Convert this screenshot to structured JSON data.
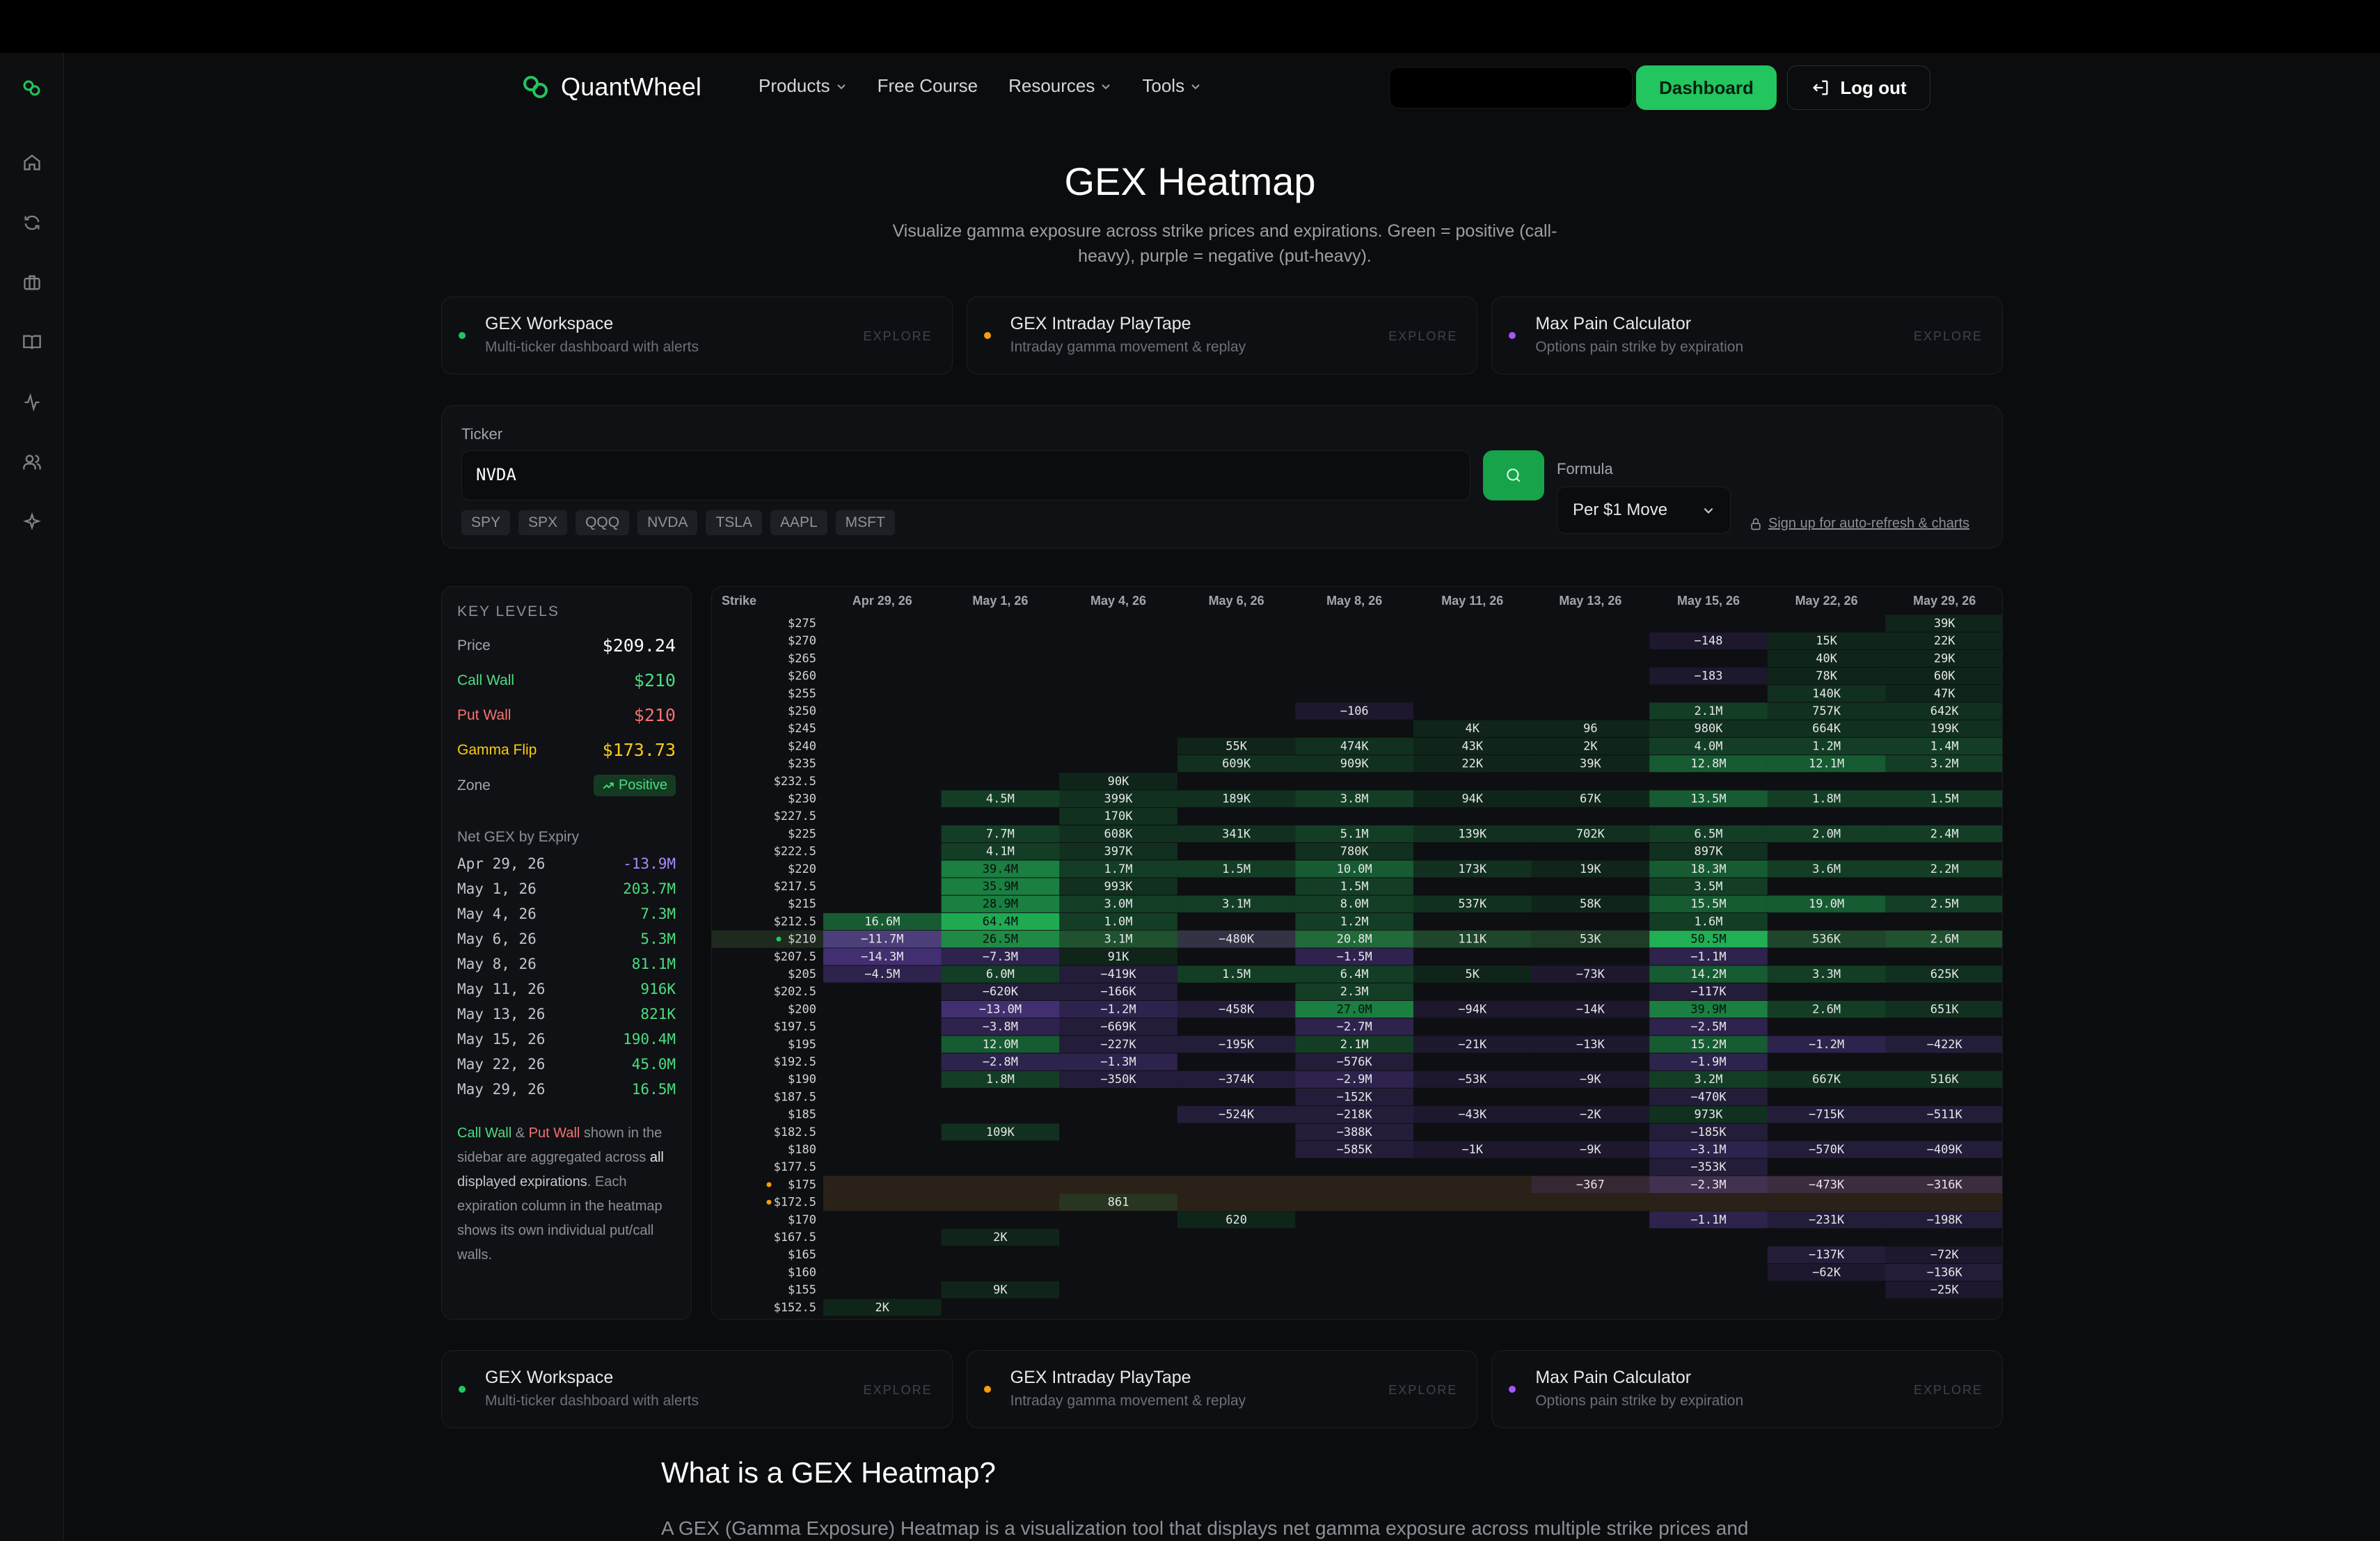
{
  "brand": {
    "name": "QuantWheel"
  },
  "nav": {
    "products": "Products",
    "free_course": "Free Course",
    "resources": "Resources",
    "tools": "Tools",
    "dashboard": "Dashboard",
    "logout": "Log out"
  },
  "sidebar_icons": [
    "logo-icon",
    "home-icon",
    "refresh-icon",
    "briefcase-icon",
    "book-icon",
    "activity-icon",
    "users-icon",
    "sparkle-icon"
  ],
  "page": {
    "title": "GEX Heatmap",
    "subtitle": "Visualize gamma exposure across strike prices and expirations. Green = positive (call-heavy), purple = negative (put-heavy)."
  },
  "tool_cards": [
    {
      "title": "GEX Workspace",
      "subtitle": "Multi-ticker dashboard with alerts",
      "cta": "EXPLORE",
      "dot": "#22c55e"
    },
    {
      "title": "GEX Intraday PlayTape",
      "subtitle": "Intraday gamma movement & replay",
      "cta": "EXPLORE",
      "dot": "#f59e0b"
    },
    {
      "title": "Max Pain Calculator",
      "subtitle": "Options pain strike by expiration",
      "cta": "EXPLORE",
      "dot": "#a855f7"
    }
  ],
  "ticker": {
    "label": "Ticker",
    "value": "NVDA",
    "chips": [
      "SPY",
      "SPX",
      "QQQ",
      "NVDA",
      "TSLA",
      "AAPL",
      "MSFT"
    ],
    "formula_label": "Formula",
    "formula_value": "Per $1 Move",
    "signup_link": "Sign up for auto-refresh & charts"
  },
  "key_levels": {
    "title": "KEY LEVELS",
    "price_label": "Price",
    "price": "$209.24",
    "call_wall_label": "Call Wall",
    "call_wall": "$210",
    "put_wall_label": "Put Wall",
    "put_wall": "$210",
    "gamma_flip_label": "Gamma Flip",
    "gamma_flip": "$173.73",
    "zone_label": "Zone",
    "zone": "Positive",
    "net_title": "Net GEX by Expiry",
    "net": [
      {
        "date": "Apr 29, 26",
        "value": "-13.9M",
        "neg": true
      },
      {
        "date": "May 1, 26",
        "value": "203.7M"
      },
      {
        "date": "May 4, 26",
        "value": "7.3M"
      },
      {
        "date": "May 6, 26",
        "value": "5.3M"
      },
      {
        "date": "May 8, 26",
        "value": "81.1M"
      },
      {
        "date": "May 11, 26",
        "value": "916K"
      },
      {
        "date": "May 13, 26",
        "value": "821K"
      },
      {
        "date": "May 15, 26",
        "value": "190.4M"
      },
      {
        "date": "May 22, 26",
        "value": "45.0M"
      },
      {
        "date": "May 29, 26",
        "value": "16.5M"
      }
    ],
    "note_call": "Call Wall",
    "note_amp": " & ",
    "note_put": "Put Wall",
    "note_mid": " shown in the sidebar are aggregated across ",
    "note_all": "all",
    "note_disp": " displayed expirations",
    "note_end": ". Each expiration column in the heatmap shows its own individual put/call walls."
  },
  "heatmap": {
    "strike_header": "Strike",
    "columns": [
      "Apr 29, 26",
      "May 1, 26",
      "May 4, 26",
      "May 6, 26",
      "May 8, 26",
      "May 11, 26",
      "May 13, 26",
      "May 15, 26",
      "May 22, 26",
      "May 29, 26"
    ],
    "colors": {
      "pos": "#22c55e",
      "neg": "#8b5cf6",
      "price_row": "#1f2a1f",
      "flip_row": "#2a2218"
    },
    "rows": [
      {
        "strike": "$275",
        "cells": [
          "",
          "",
          "",
          "",
          "",
          "",
          "",
          "",
          "",
          "39K"
        ]
      },
      {
        "strike": "$270",
        "cells": [
          "",
          "",
          "",
          "",
          "",
          "",
          "",
          "-148",
          "15K",
          "22K"
        ]
      },
      {
        "strike": "$265",
        "cells": [
          "",
          "",
          "",
          "",
          "",
          "",
          "",
          "",
          "40K",
          "29K"
        ]
      },
      {
        "strike": "$260",
        "cells": [
          "",
          "",
          "",
          "",
          "",
          "",
          "",
          "-183",
          "78K",
          "60K"
        ]
      },
      {
        "strike": "$255",
        "cells": [
          "",
          "",
          "",
          "",
          "",
          "",
          "",
          "",
          "140K",
          "47K"
        ]
      },
      {
        "strike": "$250",
        "cells": [
          "",
          "",
          "",
          "",
          "-106",
          "",
          "",
          "2.1M",
          "757K",
          "642K"
        ]
      },
      {
        "strike": "$245",
        "cells": [
          "",
          "",
          "",
          "",
          "",
          "4K",
          "96",
          "980K",
          "664K",
          "199K"
        ]
      },
      {
        "strike": "$240",
        "cells": [
          "",
          "",
          "",
          "55K",
          "474K",
          "43K",
          "2K",
          "4.0M",
          "1.2M",
          "1.4M"
        ]
      },
      {
        "strike": "$235",
        "cells": [
          "",
          "",
          "",
          "609K",
          "909K",
          "22K",
          "39K",
          "12.8M",
          "12.1M",
          "3.2M"
        ]
      },
      {
        "strike": "$232.5",
        "cells": [
          "",
          "",
          "90K",
          "",
          "",
          "",
          "",
          "",
          "",
          ""
        ]
      },
      {
        "strike": "$230",
        "cells": [
          "",
          "4.5M",
          "399K",
          "189K",
          "3.8M",
          "94K",
          "67K",
          "13.5M",
          "1.8M",
          "1.5M"
        ]
      },
      {
        "strike": "$227.5",
        "cells": [
          "",
          "",
          "170K",
          "",
          "",
          "",
          "",
          "",
          "",
          ""
        ]
      },
      {
        "strike": "$225",
        "cells": [
          "",
          "7.7M",
          "608K",
          "341K",
          "5.1M",
          "139K",
          "702K",
          "6.5M",
          "2.0M",
          "2.4M"
        ]
      },
      {
        "strike": "$222.5",
        "cells": [
          "",
          "4.1M",
          "397K",
          "",
          "780K",
          "",
          "",
          "897K",
          "",
          ""
        ]
      },
      {
        "strike": "$220",
        "cells": [
          "",
          "39.4M",
          "1.7M",
          "1.5M",
          "10.0M",
          "173K",
          "19K",
          "18.3M",
          "3.6M",
          "2.2M"
        ]
      },
      {
        "strike": "$217.5",
        "cells": [
          "",
          "35.9M",
          "993K",
          "",
          "1.5M",
          "",
          "",
          "3.5M",
          "",
          ""
        ]
      },
      {
        "strike": "$215",
        "cells": [
          "",
          "28.9M",
          "3.0M",
          "3.1M",
          "8.0M",
          "537K",
          "58K",
          "15.5M",
          "19.0M",
          "2.5M"
        ]
      },
      {
        "strike": "$212.5",
        "cells": [
          "16.6M",
          "64.4M",
          "1.0M",
          "",
          "1.2M",
          "",
          "",
          "1.6M",
          "",
          ""
        ]
      },
      {
        "strike": "$210",
        "marker": "price",
        "cells": [
          "-11.7M",
          "26.5M",
          "3.1M",
          "-480K",
          "20.8M",
          "111K",
          "53K",
          "50.5M",
          "536K",
          "2.6M"
        ]
      },
      {
        "strike": "$207.5",
        "cells": [
          "-14.3M",
          "-7.3M",
          "91K",
          "",
          "-1.5M",
          "",
          "",
          "-1.1M",
          "",
          ""
        ]
      },
      {
        "strike": "$205",
        "cells": [
          "-4.5M",
          "6.0M",
          "-419K",
          "1.5M",
          "6.4M",
          "5K",
          "-73K",
          "14.2M",
          "3.3M",
          "625K"
        ]
      },
      {
        "strike": "$202.5",
        "cells": [
          "",
          "-620K",
          "-166K",
          "",
          "2.3M",
          "",
          "",
          "-117K",
          "",
          ""
        ]
      },
      {
        "strike": "$200",
        "cells": [
          "",
          "-13.0M",
          "-1.2M",
          "-458K",
          "27.0M",
          "-94K",
          "-14K",
          "39.9M",
          "2.6M",
          "651K"
        ]
      },
      {
        "strike": "$197.5",
        "cells": [
          "",
          "-3.8M",
          "-669K",
          "",
          "-2.7M",
          "",
          "",
          "-2.5M",
          "",
          ""
        ]
      },
      {
        "strike": "$195",
        "cells": [
          "",
          "12.0M",
          "-227K",
          "-195K",
          "2.1M",
          "-21K",
          "-13K",
          "15.2M",
          "-1.2M",
          "-422K"
        ]
      },
      {
        "strike": "$192.5",
        "cells": [
          "",
          "-2.8M",
          "-1.3M",
          "",
          "-576K",
          "",
          "",
          "-1.9M",
          "",
          ""
        ]
      },
      {
        "strike": "$190",
        "cells": [
          "",
          "1.8M",
          "-350K",
          "-374K",
          "-2.9M",
          "-53K",
          "-9K",
          "3.2M",
          "667K",
          "516K"
        ]
      },
      {
        "strike": "$187.5",
        "cells": [
          "",
          "",
          "",
          "",
          "-152K",
          "",
          "",
          "-470K",
          "",
          ""
        ]
      },
      {
        "strike": "$185",
        "cells": [
          "",
          "",
          "",
          "-524K",
          "-218K",
          "-43K",
          "-2K",
          "973K",
          "-715K",
          "-511K"
        ]
      },
      {
        "strike": "$182.5",
        "cells": [
          "",
          "109K",
          "",
          "",
          "-388K",
          "",
          "",
          "-185K",
          "",
          ""
        ]
      },
      {
        "strike": "$180",
        "cells": [
          "",
          "",
          "",
          "",
          "-585K",
          "-1K",
          "-9K",
          "-3.1M",
          "-570K",
          "-409K"
        ]
      },
      {
        "strike": "$177.5",
        "cells": [
          "",
          "",
          "",
          "",
          "",
          "",
          "",
          "-353K",
          "",
          ""
        ]
      },
      {
        "strike": "$175",
        "marker": "flip",
        "cells": [
          "",
          "",
          "",
          "",
          "",
          "",
          "-367",
          "-2.3M",
          "-473K",
          "-316K"
        ]
      },
      {
        "strike": "$172.5",
        "marker": "flip",
        "cells": [
          "",
          "",
          "861",
          "",
          "",
          "",
          "",
          "",
          "",
          ""
        ]
      },
      {
        "strike": "$170",
        "cells": [
          "",
          "",
          "",
          "620",
          "",
          "",
          "",
          "-1.1M",
          "-231K",
          "-198K"
        ]
      },
      {
        "strike": "$167.5",
        "cells": [
          "",
          "2K",
          "",
          "",
          "",
          "",
          "",
          "",
          "",
          ""
        ]
      },
      {
        "strike": "$165",
        "cells": [
          "",
          "",
          "",
          "",
          "",
          "",
          "",
          "",
          "-137K",
          "-72K"
        ]
      },
      {
        "strike": "$160",
        "cells": [
          "",
          "",
          "",
          "",
          "",
          "",
          "",
          "",
          "-62K",
          "-136K"
        ]
      },
      {
        "strike": "$155",
        "cells": [
          "",
          "9K",
          "",
          "",
          "",
          "",
          "",
          "",
          "",
          "-25K"
        ]
      },
      {
        "strike": "$152.5",
        "cells": [
          "2K",
          "",
          "",
          "",
          "",
          "",
          "",
          "",
          "",
          ""
        ]
      }
    ]
  },
  "whatis": {
    "title": "What is a GEX Heatmap?",
    "body": "A GEX (Gamma Exposure) Heatmap is a visualization tool that displays net gamma exposure across multiple strike prices and"
  }
}
